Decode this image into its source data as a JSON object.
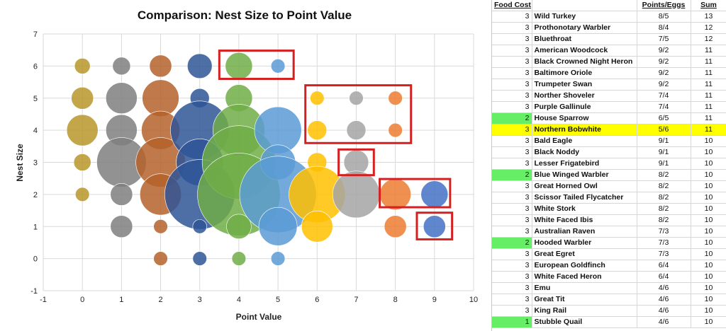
{
  "chart_data": {
    "type": "scatter",
    "variant": "bubble",
    "title": "Comparison: Nest Size to Point Value",
    "xlabel": "Point Value",
    "ylabel": "Nest Size",
    "xlim": [
      -1,
      10
    ],
    "ylim": [
      -1,
      7
    ],
    "xticks": [
      -1,
      0,
      1,
      2,
      3,
      4,
      5,
      6,
      7,
      8,
      9,
      10
    ],
    "yticks": [
      -1,
      0,
      1,
      2,
      3,
      4,
      5,
      6,
      7
    ],
    "grid": true,
    "legend": "none",
    "colors": {
      "0": "#B8952A",
      "1": "#7F7F7F",
      "2": "#B4622A",
      "3": "#2F5597",
      "4": "#70AD47",
      "5": "#5B9BD5",
      "6": "#FFC000",
      "7": "#A5A5A5",
      "8": "#ED7D31",
      "9": "#4472C4",
      "highlight_box": "#D42020"
    },
    "series_note": "bubble size = relative count",
    "points": [
      {
        "x": 0,
        "y": 6,
        "size": 1
      },
      {
        "x": 0,
        "y": 5,
        "size": 2
      },
      {
        "x": 0,
        "y": 4,
        "size": 4
      },
      {
        "x": 0,
        "y": 3,
        "size": 1.2
      },
      {
        "x": 0,
        "y": 2,
        "size": 0.8
      },
      {
        "x": 1,
        "y": 6,
        "size": 1.3
      },
      {
        "x": 1,
        "y": 5,
        "size": 4
      },
      {
        "x": 1,
        "y": 4,
        "size": 4
      },
      {
        "x": 1,
        "y": 3,
        "size": 10
      },
      {
        "x": 1,
        "y": 2,
        "size": 2
      },
      {
        "x": 1,
        "y": 1,
        "size": 2
      },
      {
        "x": 2,
        "y": 6,
        "size": 2
      },
      {
        "x": 2,
        "y": 5,
        "size": 5.5
      },
      {
        "x": 2,
        "y": 4,
        "size": 6
      },
      {
        "x": 2,
        "y": 3,
        "size": 10
      },
      {
        "x": 2,
        "y": 2,
        "size": 7
      },
      {
        "x": 2,
        "y": 1,
        "size": 0.8
      },
      {
        "x": 2,
        "y": 0,
        "size": 0.8
      },
      {
        "x": 3,
        "y": 6,
        "size": 2.5
      },
      {
        "x": 3,
        "y": 5,
        "size": 1.5
      },
      {
        "x": 3,
        "y": 4,
        "size": 14
      },
      {
        "x": 3,
        "y": 3,
        "size": 9
      },
      {
        "x": 3,
        "y": 2,
        "size": 20
      },
      {
        "x": 3,
        "y": 1,
        "size": 0.8
      },
      {
        "x": 3,
        "y": 0,
        "size": 0.8
      },
      {
        "x": 4,
        "y": 6,
        "size": 3
      },
      {
        "x": 4,
        "y": 5,
        "size": 3
      },
      {
        "x": 4,
        "y": 4,
        "size": 11
      },
      {
        "x": 4,
        "y": 3,
        "size": 22
      },
      {
        "x": 4,
        "y": 2,
        "size": 28
      },
      {
        "x": 4,
        "y": 1,
        "size": 2.5
      },
      {
        "x": 4,
        "y": 0,
        "size": 0.8
      },
      {
        "x": 5,
        "y": 6,
        "size": 0.8
      },
      {
        "x": 5,
        "y": 4,
        "size": 9
      },
      {
        "x": 5,
        "y": 3,
        "size": 5
      },
      {
        "x": 5,
        "y": 2,
        "size": 24
      },
      {
        "x": 5,
        "y": 1,
        "size": 6
      },
      {
        "x": 5,
        "y": 0,
        "size": 0.8
      },
      {
        "x": 6,
        "y": 5,
        "size": 0.8
      },
      {
        "x": 6,
        "y": 4,
        "size": 1.5
      },
      {
        "x": 6,
        "y": 3,
        "size": 1.5
      },
      {
        "x": 6,
        "y": 2,
        "size": 13
      },
      {
        "x": 6,
        "y": 1,
        "size": 4
      },
      {
        "x": 7,
        "y": 5,
        "size": 0.8
      },
      {
        "x": 7,
        "y": 4,
        "size": 1.5
      },
      {
        "x": 7,
        "y": 3,
        "size": 2.5
      },
      {
        "x": 7,
        "y": 2,
        "size": 9
      },
      {
        "x": 8,
        "y": 5,
        "size": 0.8
      },
      {
        "x": 8,
        "y": 4,
        "size": 0.8
      },
      {
        "x": 8,
        "y": 2,
        "size": 4
      },
      {
        "x": 8,
        "y": 1,
        "size": 2
      },
      {
        "x": 9,
        "y": 2,
        "size": 3
      },
      {
        "x": 9,
        "y": 1,
        "size": 2
      }
    ],
    "highlight_boxes": [
      {
        "x0": 3.5,
        "x1": 5.4,
        "y0": 5.6,
        "y1": 6.48
      },
      {
        "x0": 5.7,
        "x1": 8.4,
        "y0": 3.6,
        "y1": 5.4
      },
      {
        "x0": 6.55,
        "x1": 7.45,
        "y0": 2.6,
        "y1": 3.4
      },
      {
        "x0": 7.6,
        "x1": 9.4,
        "y0": 1.6,
        "y1": 2.48
      },
      {
        "x0": 8.55,
        "x1": 9.45,
        "y0": 0.6,
        "y1": 1.43
      }
    ]
  },
  "table": {
    "headers": {
      "cost": "Food Cost",
      "pe": "Points/Eggs",
      "sum": "Sum"
    },
    "highlight_colors": {
      "green": "#66EE66",
      "yellow": "#FFFF00"
    },
    "rows": [
      {
        "cost": "3",
        "name": "Wild Turkey",
        "pe": "8/5",
        "sum": "13"
      },
      {
        "cost": "3",
        "name": "Prothonotary Warbler",
        "pe": "8/4",
        "sum": "12"
      },
      {
        "cost": "3",
        "name": "Bluethroat",
        "pe": "7/5",
        "sum": "12"
      },
      {
        "cost": "3",
        "name": "American Woodcock",
        "pe": "9/2",
        "sum": "11"
      },
      {
        "cost": "3",
        "name": "Black Crowned Night Heron",
        "pe": "9/2",
        "sum": "11"
      },
      {
        "cost": "3",
        "name": "Baltimore Oriole",
        "pe": "9/2",
        "sum": "11"
      },
      {
        "cost": "3",
        "name": "Trumpeter Swan",
        "pe": "9/2",
        "sum": "11"
      },
      {
        "cost": "3",
        "name": "Norther Shoveler",
        "pe": "7/4",
        "sum": "11"
      },
      {
        "cost": "3",
        "name": "Purple Gallinule",
        "pe": "7/4",
        "sum": "11"
      },
      {
        "cost": "2",
        "name": "House Sparrow",
        "pe": "6/5",
        "sum": "11",
        "hl": "green"
      },
      {
        "cost": "3",
        "name": "Northern Bobwhite",
        "pe": "5/6",
        "sum": "11",
        "hl": "yellow"
      },
      {
        "cost": "3",
        "name": "Bald Eagle",
        "pe": "9/1",
        "sum": "10"
      },
      {
        "cost": "3",
        "name": "Black Noddy",
        "pe": "9/1",
        "sum": "10"
      },
      {
        "cost": "3",
        "name": "Lesser Frigatebird",
        "pe": "9/1",
        "sum": "10"
      },
      {
        "cost": "2",
        "name": "Blue Winged Warbler",
        "pe": "8/2",
        "sum": "10",
        "hl": "green"
      },
      {
        "cost": "3",
        "name": "Great Horned Owl",
        "pe": "8/2",
        "sum": "10"
      },
      {
        "cost": "3",
        "name": "Scissor Tailed Flycatcher",
        "pe": "8/2",
        "sum": "10"
      },
      {
        "cost": "3",
        "name": "White Stork",
        "pe": "8/2",
        "sum": "10"
      },
      {
        "cost": "3",
        "name": "White Faced Ibis",
        "pe": "8/2",
        "sum": "10"
      },
      {
        "cost": "3",
        "name": "Australian Raven",
        "pe": "7/3",
        "sum": "10"
      },
      {
        "cost": "2",
        "name": "Hooded Warbler",
        "pe": "7/3",
        "sum": "10",
        "hl": "green"
      },
      {
        "cost": "3",
        "name": "Great Egret",
        "pe": "7/3",
        "sum": "10"
      },
      {
        "cost": "3",
        "name": "European Goldfinch",
        "pe": "6/4",
        "sum": "10"
      },
      {
        "cost": "3",
        "name": "White Faced Heron",
        "pe": "6/4",
        "sum": "10"
      },
      {
        "cost": "3",
        "name": "Emu",
        "pe": "4/6",
        "sum": "10"
      },
      {
        "cost": "3",
        "name": "Great Tit",
        "pe": "4/6",
        "sum": "10"
      },
      {
        "cost": "3",
        "name": "King Rail",
        "pe": "4/6",
        "sum": "10"
      },
      {
        "cost": "1",
        "name": "Stubble Quail",
        "pe": "4/6",
        "sum": "10",
        "hl": "green"
      }
    ]
  }
}
